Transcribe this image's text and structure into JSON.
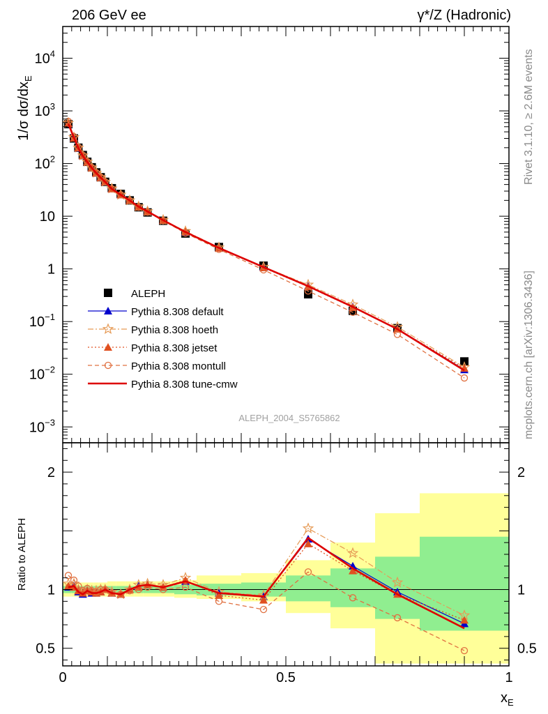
{
  "header": {
    "left": "206 GeV ee",
    "right": "γ*/Z (Hadronic)"
  },
  "side": {
    "top": "Rivet 3.1.10, ≥ 2.6M events",
    "bottom": "mcplots.cern.ch [arXiv:1306.3436]"
  },
  "watermark": "ALEPH_2004_S5765862",
  "colors": {
    "default": "#0000cc",
    "hoeth": "#e69a55",
    "jetset": "#e05020",
    "montull": "#e07040",
    "cmw": "#dd0000",
    "band_inner": "#90ee90",
    "band_outer": "#ffff99"
  },
  "chart_data": [
    {
      "type": "scatter",
      "yscale": "log",
      "ylabel": "1/σ dσ/dx_E",
      "xlim": [
        0,
        1
      ],
      "ylim": [
        0.0005,
        40000
      ],
      "ytick_labels": [
        "10^{-3}",
        "10^{-2}",
        "10^{-1}",
        "1",
        "10",
        "10^{2}",
        "10^{3}",
        "10^{4}"
      ],
      "legend_position": "lower-left",
      "x": [
        0.0125,
        0.025,
        0.035,
        0.045,
        0.055,
        0.065,
        0.075,
        0.085,
        0.095,
        0.11,
        0.13,
        0.15,
        0.17,
        0.19,
        0.225,
        0.275,
        0.35,
        0.45,
        0.55,
        0.65,
        0.75,
        0.9
      ],
      "series": [
        {
          "name": "ALEPH",
          "style": "markers-square",
          "values": [
            560,
            300,
            200,
            145,
            108,
            85,
            68,
            55,
            45,
            34,
            26.5,
            20,
            14.8,
            11.8,
            8.2,
            4.7,
            2.6,
            1.15,
            0.33,
            0.16,
            0.075,
            0.0175
          ]
        },
        {
          "name": "Pythia 8.308 default",
          "style": "line-triangle",
          "values": [
            570,
            310,
            196,
            140,
            107,
            83,
            66,
            54,
            45,
            33,
            25.5,
            20,
            15.2,
            12.3,
            8.4,
            5.0,
            2.5,
            1.08,
            0.47,
            0.19,
            0.073,
            0.0122
          ]
        },
        {
          "name": "Pythia 8.308 hoeth",
          "style": "dashdot-star",
          "values": [
            590,
            315,
            200,
            142,
            108,
            84,
            67,
            55,
            45,
            33.5,
            25.5,
            20,
            15.3,
            12.4,
            8.5,
            5.2,
            2.55,
            1.09,
            0.5,
            0.21,
            0.079,
            0.0136
          ]
        },
        {
          "name": "Pythia 8.308 jetset",
          "style": "dotted-triangle",
          "values": [
            575,
            305,
            198,
            141,
            107,
            83,
            66,
            54,
            45,
            33,
            25.5,
            20,
            15.1,
            12.3,
            8.4,
            5.1,
            2.48,
            1.05,
            0.46,
            0.185,
            0.072,
            0.013
          ]
        },
        {
          "name": "Pythia 8.308 montull",
          "style": "dashed-circle",
          "values": [
            630,
            325,
            205,
            144,
            109,
            84,
            67,
            55,
            45,
            33,
            25.5,
            19.8,
            14.8,
            12.0,
            8.2,
            4.8,
            2.35,
            0.96,
            0.38,
            0.15,
            0.057,
            0.0085
          ]
        },
        {
          "name": "Pythia 8.308 tune-cmw",
          "style": "solid-thick",
          "values": [
            570,
            310,
            196,
            140,
            107,
            83,
            66,
            54,
            45,
            33,
            25.5,
            20,
            15.2,
            12.3,
            8.4,
            5.0,
            2.5,
            1.08,
            0.47,
            0.19,
            0.072,
            0.0118
          ]
        }
      ]
    },
    {
      "type": "line",
      "ylabel": "Ratio to ALEPH",
      "xlabel": "x_E",
      "xlim": [
        0,
        1
      ],
      "ylim": [
        0.35,
        2.25
      ],
      "yticks": [
        0.5,
        1,
        2
      ],
      "ytick_labels": [
        "0.5",
        "1",
        "2"
      ],
      "xticks": [
        0,
        0.5,
        1
      ],
      "xtick_labels": [
        "0",
        "0.5",
        "1"
      ],
      "bands": {
        "edges": [
          0.0,
          0.02,
          0.03,
          0.04,
          0.05,
          0.06,
          0.07,
          0.08,
          0.09,
          0.1,
          0.12,
          0.14,
          0.16,
          0.18,
          0.2,
          0.25,
          0.3,
          0.4,
          0.5,
          0.6,
          0.7,
          0.8,
          1.0
        ],
        "inner": [
          [
            0.97,
            1.03
          ],
          [
            0.97,
            1.03
          ],
          [
            0.97,
            1.03
          ],
          [
            0.97,
            1.03
          ],
          [
            0.97,
            1.03
          ],
          [
            0.97,
            1.03
          ],
          [
            0.97,
            1.03
          ],
          [
            0.97,
            1.03
          ],
          [
            0.97,
            1.03
          ],
          [
            0.97,
            1.03
          ],
          [
            0.97,
            1.03
          ],
          [
            0.97,
            1.03
          ],
          [
            0.97,
            1.03
          ],
          [
            0.97,
            1.03
          ],
          [
            0.97,
            1.03
          ],
          [
            0.96,
            1.04
          ],
          [
            0.95,
            1.05
          ],
          [
            0.94,
            1.06
          ],
          [
            0.9,
            1.12
          ],
          [
            0.85,
            1.18
          ],
          [
            0.75,
            1.28
          ],
          [
            0.65,
            1.45
          ]
        ],
        "outer": [
          [
            0.94,
            1.06
          ],
          [
            0.94,
            1.06
          ],
          [
            0.94,
            1.06
          ],
          [
            0.94,
            1.06
          ],
          [
            0.94,
            1.06
          ],
          [
            0.94,
            1.06
          ],
          [
            0.94,
            1.06
          ],
          [
            0.94,
            1.06
          ],
          [
            0.94,
            1.06
          ],
          [
            0.94,
            1.07
          ],
          [
            0.94,
            1.07
          ],
          [
            0.94,
            1.07
          ],
          [
            0.94,
            1.07
          ],
          [
            0.94,
            1.07
          ],
          [
            0.94,
            1.07
          ],
          [
            0.93,
            1.08
          ],
          [
            0.92,
            1.12
          ],
          [
            0.9,
            1.14
          ],
          [
            0.8,
            1.25
          ],
          [
            0.67,
            1.4
          ],
          [
            0.37,
            1.65
          ],
          [
            0.37,
            1.82
          ]
        ]
      },
      "x": [
        0.0125,
        0.025,
        0.035,
        0.045,
        0.055,
        0.065,
        0.075,
        0.085,
        0.095,
        0.11,
        0.13,
        0.15,
        0.17,
        0.19,
        0.225,
        0.275,
        0.35,
        0.45,
        0.55,
        0.65,
        0.75,
        0.9
      ],
      "series": [
        {
          "name": "Pythia 8.308 default",
          "values": [
            1.02,
            1.03,
            0.98,
            0.96,
            0.99,
            0.97,
            0.97,
            0.98,
            1.0,
            0.97,
            0.96,
            1.0,
            1.03,
            1.04,
            1.02,
            1.07,
            0.97,
            0.94,
            1.43,
            1.2,
            0.98,
            0.71
          ]
        },
        {
          "name": "Pythia 8.308 hoeth",
          "values": [
            1.05,
            1.05,
            1.0,
            0.98,
            1.0,
            0.99,
            0.99,
            1.0,
            1.0,
            0.98,
            0.96,
            1.0,
            1.04,
            1.05,
            1.04,
            1.1,
            0.98,
            0.95,
            1.52,
            1.31,
            1.06,
            0.78
          ]
        },
        {
          "name": "Pythia 8.308 jetset",
          "values": [
            1.03,
            1.02,
            0.99,
            0.97,
            0.99,
            0.98,
            0.97,
            0.98,
            1.0,
            0.97,
            0.96,
            1.0,
            1.02,
            1.04,
            1.02,
            1.08,
            0.95,
            0.91,
            1.39,
            1.16,
            0.96,
            0.74
          ]
        },
        {
          "name": "Pythia 8.308 montull",
          "values": [
            1.12,
            1.08,
            1.03,
            0.99,
            1.01,
            0.99,
            0.98,
            1.0,
            1.0,
            0.97,
            0.96,
            0.99,
            1.0,
            1.02,
            1.0,
            1.02,
            0.9,
            0.83,
            1.15,
            0.93,
            0.76,
            0.48
          ]
        },
        {
          "name": "Pythia 8.308 tune-cmw",
          "values": [
            1.02,
            1.03,
            0.98,
            0.96,
            0.99,
            0.97,
            0.97,
            0.98,
            1.0,
            0.97,
            0.96,
            1.0,
            1.03,
            1.04,
            1.02,
            1.07,
            0.97,
            0.94,
            1.44,
            1.18,
            0.96,
            0.67
          ]
        }
      ]
    }
  ]
}
